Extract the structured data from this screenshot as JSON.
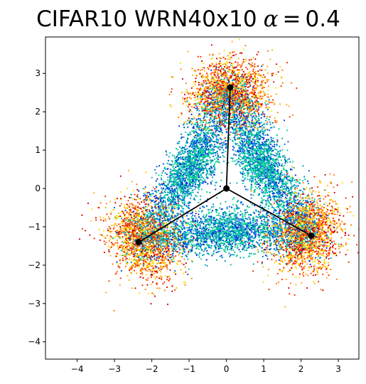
{
  "chart_data": {
    "type": "scatter",
    "title": "CIFAR10 WRN40x10",
    "title_math_symbol": "α",
    "title_math_equals": "=",
    "title_math_value": "0.4",
    "xlabel": "",
    "ylabel": "",
    "xlim": [
      -4.85,
      3.55
    ],
    "ylim": [
      -4.45,
      3.95
    ],
    "xticks": [
      -4,
      -3,
      -2,
      -1,
      0,
      1,
      2,
      3
    ],
    "yticks": [
      -4,
      -3,
      -2,
      -1,
      0,
      1,
      2,
      3
    ],
    "grid": false,
    "legend": "none",
    "colormap": [
      "#ffe000",
      "#ffb000",
      "#ff8000",
      "#ff3000",
      "#d00000",
      "#0030d0",
      "#0060e0",
      "#0090d0",
      "#00b8a0",
      "#00d890"
    ],
    "centroid": {
      "x": 0.0,
      "y": 0.0
    },
    "vertices": [
      {
        "x": 0.1,
        "y": 2.63
      },
      {
        "x": -2.35,
        "y": -1.4
      },
      {
        "x": 2.27,
        "y": -1.23
      }
    ],
    "point_count": 12000,
    "marker_color": "#000000"
  }
}
